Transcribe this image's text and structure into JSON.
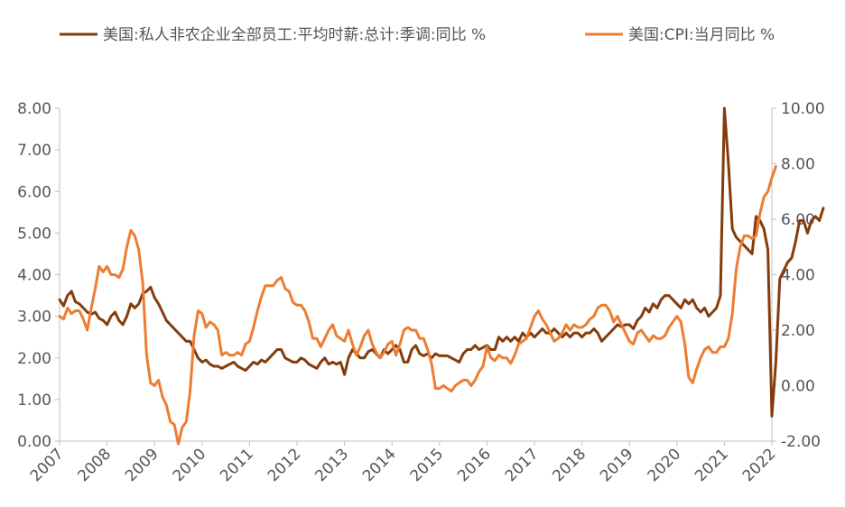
{
  "chart_data": {
    "type": "line",
    "title": "",
    "xlabel": "",
    "ylabel_left": "",
    "ylabel_right": "",
    "x_start": 2007.0,
    "x_step_months": 1,
    "x_range": [
      2007,
      2022
    ],
    "x_ticks": [
      "2007",
      "2008",
      "2009",
      "2010",
      "2011",
      "2012",
      "2013",
      "2014",
      "2015",
      "2016",
      "2017",
      "2018",
      "2019",
      "2020",
      "2021",
      "2022"
    ],
    "ylim_left": [
      0,
      8
    ],
    "ylim_right": [
      -2,
      10
    ],
    "y_ticks_left": [
      "0.00",
      "1.00",
      "2.00",
      "3.00",
      "4.00",
      "5.00",
      "6.00",
      "7.00",
      "8.00"
    ],
    "y_ticks_right": [
      "-2.00",
      "0.00",
      "2.00",
      "4.00",
      "6.00",
      "8.00",
      "10.00"
    ],
    "legend_position": "top",
    "grid": false,
    "series": [
      {
        "name": "美国:私人非农企业全部员工:平均时薪:总计:季调:同比 %",
        "axis": "left",
        "color": "#843C0C",
        "values": [
          3.4,
          3.25,
          3.5,
          3.6,
          3.35,
          3.3,
          3.2,
          3.1,
          3.05,
          3.1,
          2.95,
          2.9,
          2.8,
          3.0,
          3.1,
          2.9,
          2.8,
          3.0,
          3.3,
          3.2,
          3.3,
          3.55,
          3.6,
          3.7,
          3.45,
          3.3,
          3.1,
          2.9,
          2.8,
          2.7,
          2.6,
          2.5,
          2.4,
          2.4,
          2.2,
          2.0,
          1.9,
          1.95,
          1.85,
          1.8,
          1.8,
          1.75,
          1.8,
          1.85,
          1.9,
          1.8,
          1.75,
          1.7,
          1.8,
          1.9,
          1.85,
          1.95,
          1.9,
          2.0,
          2.1,
          2.2,
          2.2,
          2.0,
          1.95,
          1.9,
          1.9,
          2.0,
          1.95,
          1.85,
          1.8,
          1.75,
          1.9,
          2.0,
          1.85,
          1.9,
          1.85,
          1.9,
          1.6,
          2.0,
          2.2,
          2.1,
          2.0,
          2.0,
          2.15,
          2.2,
          2.1,
          2.0,
          2.2,
          2.1,
          2.2,
          2.3,
          2.2,
          1.9,
          1.9,
          2.2,
          2.3,
          2.1,
          2.05,
          2.1,
          2.0,
          2.1,
          2.05,
          2.05,
          2.05,
          2.0,
          1.95,
          1.9,
          2.1,
          2.2,
          2.2,
          2.3,
          2.2,
          2.25,
          2.3,
          2.2,
          2.2,
          2.5,
          2.4,
          2.5,
          2.4,
          2.5,
          2.4,
          2.6,
          2.5,
          2.6,
          2.5,
          2.6,
          2.7,
          2.6,
          2.6,
          2.7,
          2.6,
          2.5,
          2.6,
          2.5,
          2.6,
          2.6,
          2.5,
          2.6,
          2.6,
          2.7,
          2.6,
          2.4,
          2.5,
          2.6,
          2.7,
          2.8,
          2.75,
          2.8,
          2.8,
          2.7,
          2.9,
          3.0,
          3.2,
          3.1,
          3.3,
          3.2,
          3.4,
          3.5,
          3.5,
          3.4,
          3.3,
          3.2,
          3.4,
          3.3,
          3.4,
          3.2,
          3.1,
          3.2,
          3.0,
          3.1,
          3.2,
          3.5,
          8.0,
          6.7,
          5.1,
          4.9,
          4.8,
          4.7,
          4.6,
          4.5,
          5.4,
          5.3,
          5.1,
          4.6,
          0.6,
          1.9,
          3.9,
          4.1,
          4.3,
          4.4,
          4.8,
          5.3,
          5.3,
          5.0,
          5.3,
          5.4,
          5.3,
          5.6
        ]
      },
      {
        "name": "美国:CPI:当月同比 %",
        "axis": "right",
        "color": "#ED7D31",
        "values": [
          2.5,
          2.4,
          2.8,
          2.6,
          2.7,
          2.7,
          2.4,
          2.0,
          2.8,
          3.5,
          4.3,
          4.1,
          4.3,
          4.0,
          4.0,
          3.9,
          4.2,
          5.0,
          5.6,
          5.4,
          4.9,
          3.7,
          1.1,
          0.1,
          0.0,
          0.2,
          -0.4,
          -0.7,
          -1.3,
          -1.4,
          -2.1,
          -1.5,
          -1.3,
          -0.2,
          1.8,
          2.7,
          2.6,
          2.1,
          2.3,
          2.2,
          2.0,
          1.1,
          1.2,
          1.1,
          1.1,
          1.2,
          1.1,
          1.5,
          1.6,
          2.1,
          2.7,
          3.2,
          3.6,
          3.6,
          3.6,
          3.8,
          3.9,
          3.5,
          3.4,
          3.0,
          2.9,
          2.9,
          2.7,
          2.3,
          1.7,
          1.7,
          1.4,
          1.7,
          2.0,
          2.2,
          1.8,
          1.7,
          1.6,
          2.0,
          1.5,
          1.1,
          1.4,
          1.8,
          2.0,
          1.5,
          1.2,
          1.0,
          1.2,
          1.5,
          1.6,
          1.1,
          1.5,
          2.0,
          2.1,
          2.0,
          2.0,
          1.7,
          1.7,
          1.3,
          0.8,
          -0.1,
          -0.1,
          0.0,
          -0.1,
          -0.2,
          0.0,
          0.1,
          0.2,
          0.2,
          0.0,
          0.2,
          0.5,
          0.7,
          1.4,
          1.0,
          0.9,
          1.1,
          1.0,
          1.0,
          0.8,
          1.1,
          1.5,
          1.6,
          1.7,
          2.1,
          2.5,
          2.7,
          2.4,
          2.2,
          1.9,
          1.6,
          1.7,
          1.9,
          2.2,
          2.0,
          2.2,
          2.1,
          2.1,
          2.2,
          2.4,
          2.5,
          2.8,
          2.9,
          2.9,
          2.7,
          2.3,
          2.5,
          2.2,
          1.9,
          1.6,
          1.5,
          1.9,
          2.0,
          1.8,
          1.6,
          1.8,
          1.7,
          1.7,
          1.8,
          2.1,
          2.3,
          2.5,
          2.3,
          1.5,
          0.3,
          0.1,
          0.6,
          1.0,
          1.3,
          1.4,
          1.2,
          1.2,
          1.4,
          1.4,
          1.7,
          2.6,
          4.2,
          5.0,
          5.4,
          5.4,
          5.3,
          5.4,
          6.2,
          6.8,
          7.0,
          7.5,
          7.9
        ]
      }
    ]
  }
}
